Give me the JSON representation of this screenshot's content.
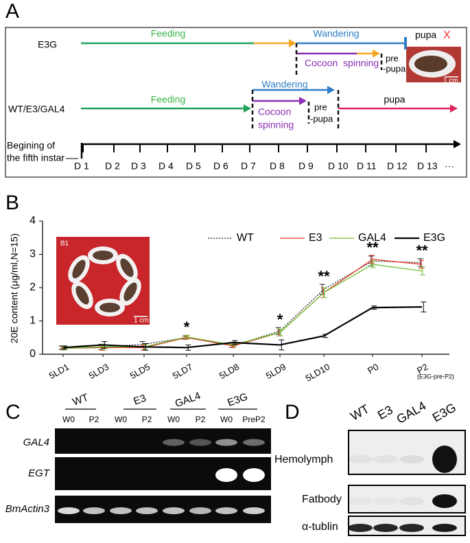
{
  "panel_a": {
    "label": "A",
    "e3g": {
      "name": "E3G",
      "feeding": "Feeding",
      "wandering": "Wandering",
      "cocoon_spinning": "Cocoon  spinning",
      "prepupa": [
        "pre",
        "-pupa"
      ],
      "pupa": "pupa",
      "mark": "X",
      "scale": "1 cm"
    },
    "wt": {
      "name": "WT/E3/GAL4",
      "feeding": "Feeding",
      "wandering": "Wandering",
      "cocoon": "Cocoon",
      "spinning": "spinning",
      "prepupa": [
        "pre",
        "-pupa"
      ],
      "pupa": "pupa"
    },
    "timeline": {
      "start": [
        "Begining of",
        "the fifth instar"
      ],
      "days": [
        "D 1",
        "D 2",
        "D 3",
        "D 4",
        "D 5",
        "D 6",
        "D 7",
        "D 8",
        "D 9",
        "D 10",
        "D 11",
        "D 12",
        "D 13"
      ],
      "ellipsis": "···"
    }
  },
  "panel_b": {
    "label": "B",
    "inset_label": "B1",
    "inset_scale": "1 cm"
  },
  "chart_data": {
    "type": "line",
    "y_label": "20E content (μg/ml,N=15)",
    "categories": [
      "5LD1",
      "5LD3",
      "5LD5",
      "5LD7",
      "5LD8",
      "5LD9",
      "5LD10",
      "P0",
      "P2"
    ],
    "category_note": "(E3G-pre-P2)",
    "ylim": [
      0,
      4
    ],
    "yticks": [
      0,
      1,
      2,
      3,
      4
    ],
    "legend": "top-right",
    "series": [
      {
        "name": "WT",
        "color": "#222222",
        "style": "dotted",
        "values": [
          0.2,
          0.22,
          0.3,
          0.5,
          0.25,
          0.7,
          1.95,
          2.8,
          2.75
        ],
        "errors": [
          0.05,
          0.08,
          0.08,
          0.05,
          0.05,
          0.1,
          0.15,
          0.15,
          0.12
        ]
      },
      {
        "name": "E3",
        "color": "#e8302a",
        "style": "solid",
        "values": [
          0.18,
          0.2,
          0.2,
          0.5,
          0.25,
          0.65,
          1.85,
          2.85,
          2.7
        ],
        "errors": [
          0.05,
          0.08,
          0.08,
          0.05,
          0.05,
          0.1,
          0.15,
          0.12,
          0.12
        ]
      },
      {
        "name": "GAL4",
        "color": "#6cc12e",
        "style": "solid",
        "values": [
          0.18,
          0.22,
          0.22,
          0.52,
          0.28,
          0.65,
          1.85,
          2.7,
          2.5
        ],
        "errors": [
          0.05,
          0.08,
          0.08,
          0.05,
          0.05,
          0.1,
          0.15,
          0.1,
          0.12
        ]
      },
      {
        "name": "E3G",
        "color": "#000000",
        "style": "solid",
        "values": [
          0.2,
          0.28,
          0.22,
          0.2,
          0.35,
          0.28,
          0.55,
          1.4,
          1.42
        ],
        "errors": [
          0.05,
          0.1,
          0.1,
          0.08,
          0.06,
          0.15,
          0.05,
          0.05,
          0.15
        ]
      }
    ],
    "annotations": [
      {
        "text": "*",
        "category": "5LD7"
      },
      {
        "text": "*",
        "category": "5LD9"
      },
      {
        "text": "**",
        "category": "5LD10"
      },
      {
        "text": "**",
        "category": "P0"
      },
      {
        "text": "**",
        "category": "P2"
      }
    ]
  },
  "panel_c": {
    "label": "C",
    "groups": [
      "WT",
      "E3",
      "GAL4",
      "E3G"
    ],
    "lanes": [
      "W0",
      "P2",
      "W0",
      "P2",
      "W0",
      "P2",
      "W0",
      "PreP2"
    ],
    "rows": [
      "GAL4",
      "EGT",
      "BmActin3"
    ]
  },
  "panel_d": {
    "label": "D",
    "columns": [
      "WT",
      "E3",
      "GAL4",
      "E3G"
    ],
    "rows": [
      "Hemolymph",
      "Fatbody",
      "α-tublin"
    ]
  }
}
